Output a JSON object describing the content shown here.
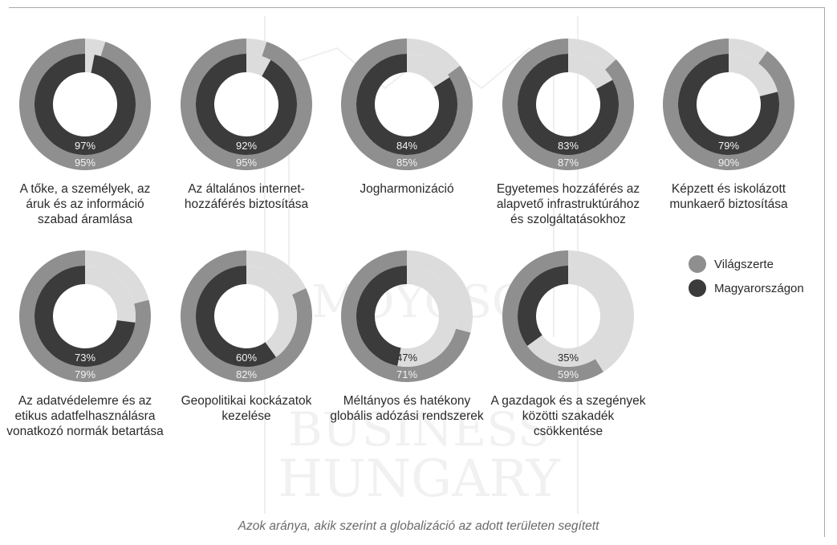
{
  "chart_data": {
    "type": "donut",
    "caption": "Azok aránya, akik szerint a globalizáció az adott területen segített",
    "series": [
      {
        "name": "Világszerte",
        "color": "#8f8f8f"
      },
      {
        "name": "Magyarországon",
        "color": "#3b3b3b"
      }
    ],
    "items": [
      {
        "label": "A tőke, a személyek, az áruk és az információ szabad áramlása",
        "Világszerte": 95,
        "Magyarországon": 97,
        "hu_text": "97%",
        "world_text": "95%"
      },
      {
        "label": "Az általános internet-hozzáférés biztosítása",
        "Világszerte": 95,
        "Magyarországon": 92,
        "hu_text": "92%",
        "world_text": "95%"
      },
      {
        "label": "Jogharmonizáció",
        "Világszerte": 85,
        "Magyarországon": 84,
        "hu_text": "84%",
        "world_text": "85%"
      },
      {
        "label": "Egyetemes hozzáférés az alapvető infrastruktúrához és szolgáltatásokhoz",
        "Világszerte": 87,
        "Magyarországon": 83,
        "hu_text": "83%",
        "world_text": "87%"
      },
      {
        "label": "Képzett és iskolázott munkaerő biztosítása",
        "Világszerte": 90,
        "Magyarországon": 79,
        "hu_text": "79%",
        "world_text": "90%"
      },
      {
        "label": "Az adatvédelemre és az etikus adatfelhasználásra vonatkozó normák betartása",
        "Világszerte": 79,
        "Magyarországon": 73,
        "hu_text": "73%",
        "world_text": "79%"
      },
      {
        "label": "Geopolitikai kockázatok kezelése",
        "Világszerte": 82,
        "Magyarországon": 60,
        "hu_text": "60%",
        "world_text": "82%"
      },
      {
        "label": "Méltányos és hatékony globális adózási rendszerek",
        "Világszerte": 71,
        "Magyarországon": 47,
        "hu_text": "47%",
        "world_text": "71%"
      },
      {
        "label": "A gazdagok és a szegények közötti szakadék csökkentése",
        "Világszerte": 59,
        "Magyarországon": 35,
        "hu_text": "35%",
        "world_text": "59%"
      }
    ]
  },
  "colors": {
    "world": "#8f8f8f",
    "hungary": "#3b3b3b",
    "remainder": "#dcdcdc",
    "value_text_light": "#f2f2f2",
    "value_text_dark": "#2a2a2a"
  },
  "watermark": {
    "lines": [
      "MOYOSC",
      "BUSINESS",
      "HUNGARY"
    ]
  }
}
